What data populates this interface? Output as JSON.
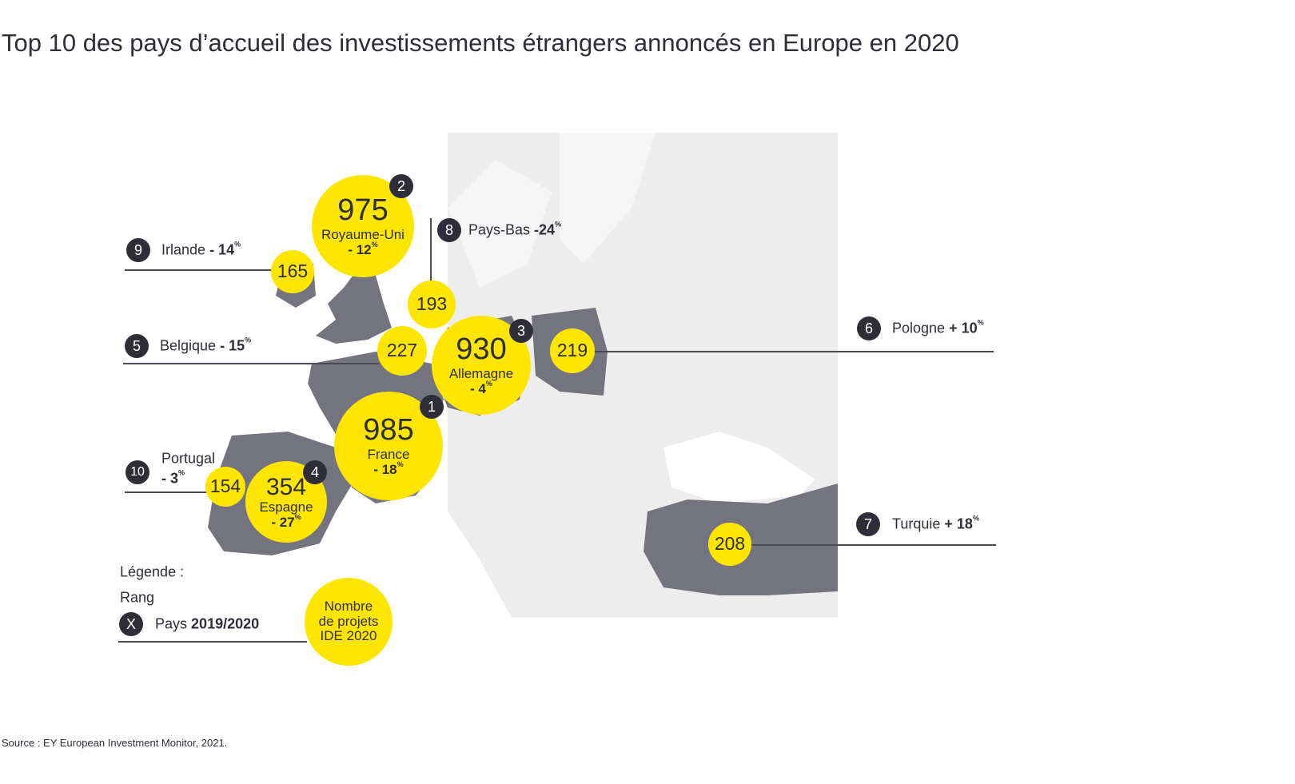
{
  "title": "Top 10 des pays d’accueil des investissements étrangers annoncés en Europe en 2020",
  "countries": [
    {
      "rank": "1",
      "name": "France",
      "projects": "985",
      "change": "- 18",
      "unit": "%"
    },
    {
      "rank": "2",
      "name": "Royaume-Uni",
      "projects": "975",
      "change": "- 12",
      "unit": "%"
    },
    {
      "rank": "3",
      "name": "Allemagne",
      "projects": "930",
      "change": "- 4",
      "unit": "%"
    },
    {
      "rank": "4",
      "name": "Espagne",
      "projects": "354",
      "change": "- 27",
      "unit": "%"
    },
    {
      "rank": "5",
      "name": "Belgique",
      "projects": "227",
      "change": "- 15",
      "unit": "%"
    },
    {
      "rank": "6",
      "name": "Pologne",
      "projects": "219",
      "change": "+ 10",
      "unit": "%"
    },
    {
      "rank": "7",
      "name": "Turquie",
      "projects": "208",
      "change": "+ 18",
      "unit": "%"
    },
    {
      "rank": "8",
      "name": "Pays-Bas",
      "projects": "193",
      "change": "-24",
      "unit": "%"
    },
    {
      "rank": "9",
      "name": "Irlande",
      "projects": "165",
      "change": "- 14",
      "unit": "%"
    },
    {
      "rank": "10",
      "name": "Portugal",
      "projects": "154",
      "change": "- 3",
      "unit": "%"
    }
  ],
  "legend": {
    "title": "Légende :",
    "rank_label": "Rang",
    "badge": "X",
    "country": "Pays",
    "period": "2019/2020",
    "bubble_l1": "Nombre",
    "bubble_l2": "de projets",
    "bubble_l3": "IDE 2020"
  },
  "source": "Source : EY European Investment Monitor, 2021.",
  "colors": {
    "bubble": "#ffe600",
    "badge": "#2e2e38",
    "highlight": "#747480",
    "map": "#ededed"
  }
}
